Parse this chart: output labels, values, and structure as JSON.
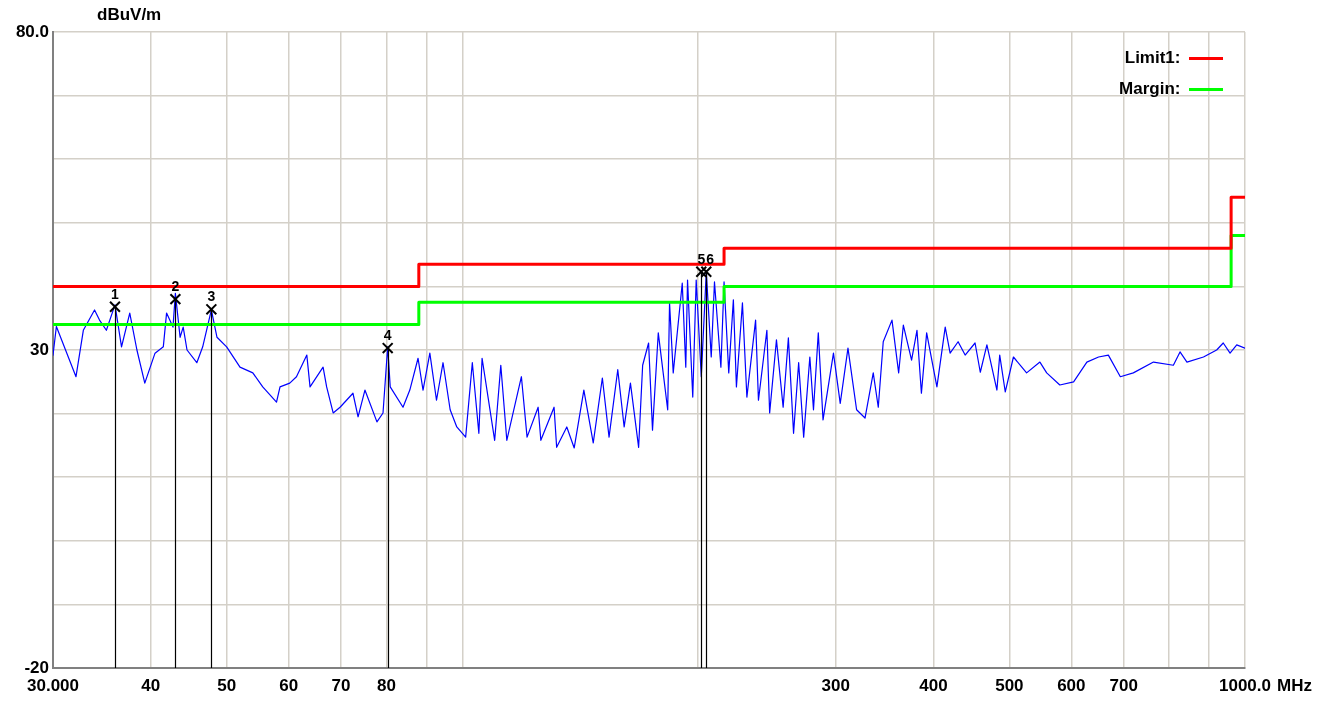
{
  "chart_data": {
    "type": "line",
    "xlabel": "MHz",
    "ylabel": "dBuV/m",
    "log": "x",
    "xlim": [
      30,
      1000
    ],
    "xticks": [
      {
        "value": 30,
        "label": "30.000"
      },
      40,
      50,
      60,
      70,
      80,
      {
        "value": 90,
        "label": null
      },
      {
        "value": 100,
        "label": null
      },
      {
        "value": 200,
        "label": null
      },
      300,
      400,
      500,
      600,
      700,
      {
        "value": 800,
        "label": null
      },
      {
        "value": 900,
        "label": null
      },
      {
        "value": 1000,
        "label": "1000.0"
      }
    ],
    "ylim": [
      -20,
      80
    ],
    "yticks": [
      -20,
      {
        "value": -10,
        "label": null
      },
      {
        "value": 0,
        "label": null
      },
      {
        "value": 10,
        "label": null
      },
      {
        "value": 20,
        "label": null
      },
      30,
      {
        "value": 40,
        "label": null
      },
      {
        "value": 50,
        "label": null
      },
      {
        "value": 60,
        "label": null
      },
      {
        "value": 70,
        "label": null
      },
      {
        "value": 80,
        "label": "80.0"
      }
    ],
    "grid": true,
    "legend": "top right",
    "series": [
      {
        "color": "#0000ff",
        "x": [
          30,
          30.3,
          32.1,
          32.8,
          33.9,
          34.4,
          35.1,
          36.0,
          36.7,
          37.6,
          38.4,
          39.3,
          40.5,
          41.5,
          41.9,
          42.7,
          43.0,
          43.6,
          44.0,
          44.5,
          45.8,
          46.6,
          47.8,
          48.6,
          50.0,
          52.0,
          54.0,
          55.6,
          57.9,
          58.5,
          60.2,
          61.4,
          63.3,
          63.9,
          66.4,
          67.1,
          68.4,
          69.8,
          72.5,
          73.6,
          75.1,
          77.8,
          79.2,
          80.3,
          80.9,
          84.0,
          85.7,
          87.8,
          89.1,
          90.9,
          92.7,
          94.5,
          96.5,
          98.4,
          101,
          103,
          105,
          106,
          110,
          112,
          114,
          119,
          121,
          125,
          126,
          131,
          132,
          136,
          139,
          143,
          147,
          151,
          154,
          158,
          161,
          164,
          168,
          170,
          173,
          175,
          178,
          183,
          184,
          186,
          191,
          193,
          194,
          197,
          199,
          202,
          205,
          208,
          210,
          214,
          216,
          219,
          222,
          224,
          228,
          231,
          237,
          239,
          245,
          247,
          252,
          257,
          261,
          265,
          269,
          273,
          278,
          281,
          285,
          289,
          298,
          304,
          311,
          319,
          327,
          335,
          340,
          345,
          354,
          361,
          366,
          375,
          381,
          386,
          392,
          404,
          414,
          420,
          430,
          439,
          452,
          459,
          468,
          482,
          486,
          494,
          506,
          526,
          547,
          558,
          580,
          604,
          628,
          650,
          669,
          693,
          720,
          764,
          810,
          826,
          843,
          885,
          920,
          938,
          957,
          976,
          1000
        ],
        "values": [
          29.2,
          33.7,
          25.8,
          33.1,
          36.3,
          34.7,
          33.1,
          37.1,
          30.5,
          35.8,
          30,
          24.8,
          29.5,
          30.5,
          35.8,
          33.6,
          38.9,
          32,
          33.6,
          30,
          28,
          30.5,
          36.3,
          32,
          30.5,
          27.3,
          26.4,
          24.2,
          21.8,
          24.2,
          24.8,
          25.8,
          29.2,
          24.2,
          27.3,
          24.2,
          20.1,
          21,
          23.2,
          19.5,
          23.7,
          18.7,
          20.1,
          30.5,
          24.2,
          21,
          23.7,
          28.7,
          23.7,
          29.5,
          22.1,
          28,
          20.6,
          17.9,
          16.3,
          28,
          16.9,
          28.7,
          15.8,
          27.6,
          15.8,
          25.8,
          16.3,
          21,
          15.8,
          21,
          14.7,
          17.9,
          14.6,
          23.7,
          15.4,
          25.6,
          16.3,
          26.9,
          17.9,
          24.8,
          14.7,
          27.6,
          31.1,
          17.4,
          32.7,
          20.6,
          37.4,
          26.4,
          40.5,
          27.3,
          41,
          22.6,
          41,
          25.8,
          42.3,
          28.9,
          40.7,
          27.3,
          40.7,
          26.4,
          37.9,
          24.2,
          37.4,
          22.6,
          34.7,
          22.1,
          33.1,
          20.1,
          31.6,
          21,
          31.9,
          16.9,
          28,
          16.3,
          28.9,
          20.6,
          32.7,
          19,
          29.5,
          21.6,
          30.3,
          20.6,
          19.3,
          26.4,
          21,
          31.3,
          34.7,
          26.4,
          33.9,
          28.4,
          33.1,
          23.2,
          32.7,
          24.2,
          33.6,
          29.5,
          31.3,
          29.2,
          31.1,
          26.5,
          30.8,
          23.7,
          29.2,
          23.4,
          28.9,
          26.4,
          28.1,
          26.4,
          24.5,
          25,
          28.1,
          28.9,
          29.2,
          25.8,
          26.4,
          28.1,
          27.6,
          29.7,
          28.1,
          28.9,
          30,
          31.1,
          29.5,
          30.8,
          30.3
        ]
      },
      {
        "type": "step",
        "name": "Limit1:",
        "color": "#ff0000",
        "x": [
          30,
          88,
          216,
          960,
          1000
        ],
        "values": [
          40,
          43.5,
          46,
          54,
          54
        ]
      },
      {
        "type": "step",
        "name": "Margin:",
        "color": "#00ff00",
        "x": [
          30,
          88,
          216,
          960,
          1000
        ],
        "values": [
          34,
          37.5,
          40,
          48,
          48
        ]
      },
      {
        "type": "lollipop",
        "color": "#000000",
        "marker": "cross",
        "x": [
          36.0,
          43.0,
          47.8,
          80.3,
          202,
          205
        ],
        "values": [
          36.8,
          38.0,
          36.4,
          30.3,
          42.3,
          42.3
        ]
      }
    ],
    "annotations": [
      {
        "text": "1",
        "x": 36.0,
        "y": 36.8
      },
      {
        "text": "2",
        "x": 43.0,
        "y": 38.0
      },
      {
        "text": "3",
        "x": 47.8,
        "y": 36.4
      },
      {
        "text": "4",
        "x": 80.3,
        "y": 30.3
      },
      {
        "text": "5",
        "x": 202,
        "y": 42.3
      },
      {
        "text": "6",
        "x": 205,
        "y": 42.3
      }
    ]
  }
}
